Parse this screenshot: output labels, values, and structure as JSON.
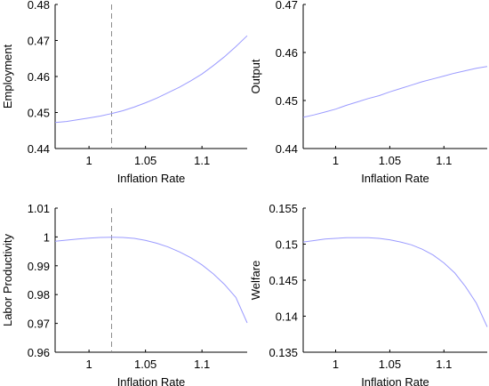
{
  "chart_data": [
    {
      "type": "line",
      "title": "",
      "xlabel": "Inflation Rate",
      "ylabel": "Employment",
      "xlim": [
        0.97,
        1.14
      ],
      "ylim": [
        0.44,
        0.48
      ],
      "xticks": [
        1,
        1.05,
        1.1
      ],
      "xtick_labels": [
        "1",
        "1.05",
        "1.1"
      ],
      "yticks": [
        0.44,
        0.45,
        0.46,
        0.47,
        0.48
      ],
      "ytick_labels": [
        "0.44",
        "0.45",
        "0.46",
        "0.47",
        "0.48"
      ],
      "vline": 1.02,
      "grid": false,
      "line_color": "#9b9bff",
      "series": [
        {
          "x": [
            0.97,
            0.98,
            0.99,
            1.0,
            1.01,
            1.02,
            1.03,
            1.04,
            1.05,
            1.06,
            1.07,
            1.08,
            1.09,
            1.1,
            1.11,
            1.12,
            1.13,
            1.14
          ],
          "y": [
            0.4472,
            0.4475,
            0.448,
            0.4485,
            0.449,
            0.4497,
            0.4505,
            0.4515,
            0.4527,
            0.454,
            0.4555,
            0.457,
            0.4588,
            0.4607,
            0.463,
            0.4655,
            0.4683,
            0.4713
          ]
        }
      ]
    },
    {
      "type": "line",
      "title": "",
      "xlabel": "Inflation Rate",
      "ylabel": "Output",
      "xlim": [
        0.97,
        1.14
      ],
      "ylim": [
        0.44,
        0.47
      ],
      "xticks": [
        1,
        1.05,
        1.1
      ],
      "xtick_labels": [
        "1",
        "1.05",
        "1.1"
      ],
      "yticks": [
        0.44,
        0.45,
        0.46,
        0.47
      ],
      "ytick_labels": [
        "0.44",
        "0.45",
        "0.46",
        "0.47"
      ],
      "vline": null,
      "grid": false,
      "line_color": "#9b9bff",
      "series": [
        {
          "x": [
            0.97,
            0.98,
            0.99,
            1.0,
            1.01,
            1.02,
            1.03,
            1.04,
            1.05,
            1.06,
            1.07,
            1.08,
            1.09,
            1.1,
            1.11,
            1.12,
            1.13,
            1.14
          ],
          "y": [
            0.4465,
            0.447,
            0.4476,
            0.4482,
            0.449,
            0.4497,
            0.4504,
            0.451,
            0.4518,
            0.4525,
            0.4532,
            0.4539,
            0.4545,
            0.4551,
            0.4557,
            0.4562,
            0.4567,
            0.4571
          ]
        }
      ]
    },
    {
      "type": "line",
      "title": "",
      "xlabel": "Inflation Rate",
      "ylabel": "Labor Productivity",
      "xlim": [
        0.97,
        1.14
      ],
      "ylim": [
        0.96,
        1.01
      ],
      "xticks": [
        1,
        1.05,
        1.1
      ],
      "xtick_labels": [
        "1",
        "1.05",
        "1.1"
      ],
      "yticks": [
        0.96,
        0.97,
        0.98,
        0.99,
        1.0,
        1.01
      ],
      "ytick_labels": [
        "0.96",
        "0.97",
        "0.98",
        "0.99",
        "1",
        "1.01"
      ],
      "vline": 1.02,
      "grid": false,
      "line_color": "#9b9bff",
      "series": [
        {
          "x": [
            0.97,
            0.98,
            0.99,
            1.0,
            1.01,
            1.02,
            1.03,
            1.04,
            1.05,
            1.06,
            1.07,
            1.08,
            1.09,
            1.1,
            1.11,
            1.12,
            1.13,
            1.14
          ],
          "y": [
            0.9985,
            0.9989,
            0.9993,
            0.9996,
            0.9998,
            0.9999,
            0.9998,
            0.9995,
            0.9988,
            0.9978,
            0.9965,
            0.9948,
            0.9928,
            0.9903,
            0.9872,
            0.9835,
            0.979,
            0.9702
          ]
        }
      ]
    },
    {
      "type": "line",
      "title": "",
      "xlabel": "Inflation Rate",
      "ylabel": "Welfare",
      "xlim": [
        0.97,
        1.14
      ],
      "ylim": [
        0.135,
        0.155
      ],
      "xticks": [
        1,
        1.05,
        1.1
      ],
      "xtick_labels": [
        "1",
        "1.05",
        "1.1"
      ],
      "yticks": [
        0.135,
        0.14,
        0.145,
        0.15,
        0.155
      ],
      "ytick_labels": [
        "0.135",
        "0.14",
        "0.145",
        "0.15",
        "0.155"
      ],
      "vline": null,
      "grid": false,
      "line_color": "#9b9bff",
      "series": [
        {
          "x": [
            0.97,
            0.98,
            0.99,
            1.0,
            1.01,
            1.02,
            1.03,
            1.04,
            1.05,
            1.06,
            1.07,
            1.08,
            1.09,
            1.1,
            1.11,
            1.12,
            1.13,
            1.14
          ],
          "y": [
            0.1503,
            0.1505,
            0.1507,
            0.1508,
            0.1509,
            0.1509,
            0.1509,
            0.1508,
            0.1506,
            0.1503,
            0.1499,
            0.1493,
            0.1485,
            0.1474,
            0.146,
            0.1441,
            0.1418,
            0.1385
          ]
        }
      ]
    }
  ]
}
